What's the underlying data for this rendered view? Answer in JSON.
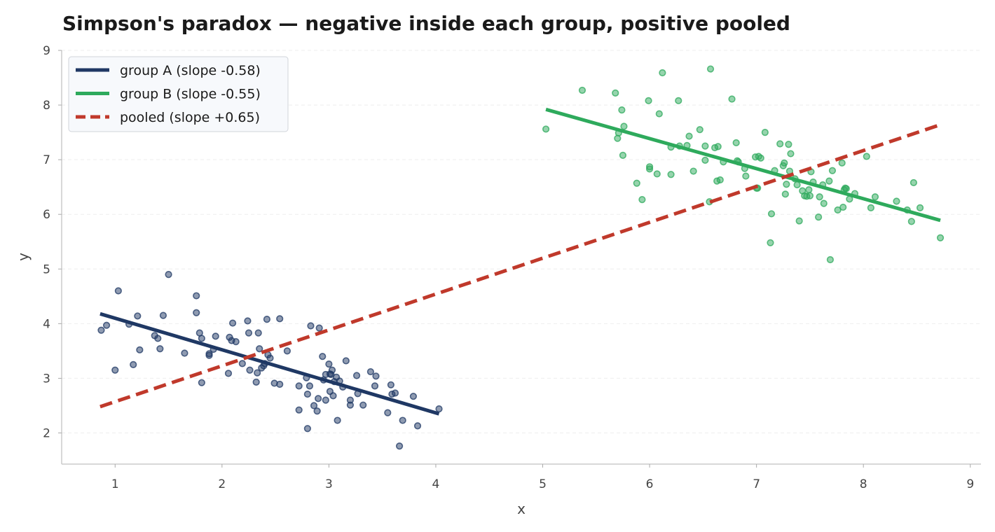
{
  "chart_data": {
    "type": "scatter",
    "title": "Simpson's paradox — negative inside each group, positive pooled",
    "xlabel": "x",
    "ylabel": "y",
    "xlim": [
      0.5,
      9.1
    ],
    "ylim": [
      1.43,
      9.0
    ],
    "xticks": [
      "1",
      "2",
      "3",
      "4",
      "5",
      "6",
      "7",
      "8",
      "9"
    ],
    "yticks": [
      "2",
      "3",
      "4",
      "5",
      "6",
      "7",
      "8",
      "9"
    ],
    "grid": "horizontal dashed",
    "legend_position": "top-left",
    "groups": [
      {
        "key": "group-a",
        "color": "#1f3864",
        "points": [
          [
            0.87,
            3.88
          ],
          [
            0.92,
            3.97
          ],
          [
            1.0,
            3.15
          ],
          [
            1.03,
            4.6
          ],
          [
            1.13,
            3.99
          ],
          [
            1.17,
            3.25
          ],
          [
            1.21,
            4.14
          ],
          [
            1.23,
            3.52
          ],
          [
            1.37,
            3.78
          ],
          [
            1.4,
            3.73
          ],
          [
            1.42,
            3.54
          ],
          [
            1.45,
            4.15
          ],
          [
            1.5,
            4.9
          ],
          [
            1.65,
            3.46
          ],
          [
            1.76,
            4.51
          ],
          [
            1.76,
            4.2
          ],
          [
            1.79,
            3.83
          ],
          [
            1.81,
            3.73
          ],
          [
            1.81,
            2.92
          ],
          [
            1.88,
            3.45
          ],
          [
            1.88,
            3.42
          ],
          [
            1.92,
            3.53
          ],
          [
            1.94,
            3.77
          ],
          [
            2.06,
            3.09
          ],
          [
            2.07,
            3.75
          ],
          [
            2.09,
            3.69
          ],
          [
            2.1,
            4.01
          ],
          [
            2.13,
            3.67
          ],
          [
            2.19,
            3.27
          ],
          [
            2.24,
            4.05
          ],
          [
            2.25,
            3.83
          ],
          [
            2.26,
            3.15
          ],
          [
            2.32,
            2.93
          ],
          [
            2.33,
            3.1
          ],
          [
            2.34,
            3.83
          ],
          [
            2.35,
            3.54
          ],
          [
            2.37,
            3.19
          ],
          [
            2.39,
            3.23
          ],
          [
            2.4,
            3.27
          ],
          [
            2.42,
            4.08
          ],
          [
            2.43,
            3.43
          ],
          [
            2.45,
            3.37
          ],
          [
            2.49,
            2.91
          ],
          [
            2.54,
            4.09
          ],
          [
            2.54,
            2.89
          ],
          [
            2.61,
            3.5
          ],
          [
            2.72,
            2.86
          ],
          [
            2.72,
            2.42
          ],
          [
            2.79,
            3.01
          ],
          [
            2.8,
            2.71
          ],
          [
            2.8,
            2.08
          ],
          [
            2.82,
            2.86
          ],
          [
            2.83,
            3.96
          ],
          [
            2.86,
            2.5
          ],
          [
            2.89,
            2.4
          ],
          [
            2.9,
            2.63
          ],
          [
            2.91,
            3.92
          ],
          [
            2.94,
            3.4
          ],
          [
            2.95,
            2.97
          ],
          [
            2.97,
            2.6
          ],
          [
            2.97,
            3.07
          ],
          [
            3.0,
            3.26
          ],
          [
            3.01,
            3.08
          ],
          [
            3.01,
            2.76
          ],
          [
            3.02,
            3.07
          ],
          [
            3.03,
            3.15
          ],
          [
            3.04,
            2.68
          ],
          [
            3.05,
            2.94
          ],
          [
            3.07,
            3.02
          ],
          [
            3.08,
            2.23
          ],
          [
            3.1,
            2.95
          ],
          [
            3.13,
            2.84
          ],
          [
            3.16,
            3.32
          ],
          [
            3.2,
            2.6
          ],
          [
            3.2,
            2.51
          ],
          [
            3.26,
            3.05
          ],
          [
            3.27,
            2.72
          ],
          [
            3.32,
            2.51
          ],
          [
            3.39,
            3.12
          ],
          [
            3.43,
            2.86
          ],
          [
            3.44,
            3.04
          ],
          [
            3.55,
            2.37
          ],
          [
            3.58,
            2.88
          ],
          [
            3.59,
            2.71
          ],
          [
            3.62,
            2.73
          ],
          [
            3.66,
            1.76
          ],
          [
            3.69,
            2.23
          ],
          [
            3.79,
            2.67
          ],
          [
            3.83,
            2.13
          ],
          [
            4.03,
            2.44
          ]
        ]
      },
      {
        "key": "group-b",
        "color": "#2eaa5c",
        "points": [
          [
            5.03,
            7.56
          ],
          [
            5.37,
            8.27
          ],
          [
            5.68,
            8.22
          ],
          [
            5.7,
            7.39
          ],
          [
            5.71,
            7.49
          ],
          [
            5.74,
            7.91
          ],
          [
            5.75,
            7.08
          ],
          [
            5.76,
            7.61
          ],
          [
            5.88,
            6.57
          ],
          [
            5.93,
            6.27
          ],
          [
            5.99,
            8.08
          ],
          [
            6.0,
            6.83
          ],
          [
            6.0,
            6.87
          ],
          [
            6.07,
            6.74
          ],
          [
            6.09,
            7.84
          ],
          [
            6.12,
            8.59
          ],
          [
            6.2,
            7.23
          ],
          [
            6.2,
            6.73
          ],
          [
            6.28,
            7.25
          ],
          [
            6.27,
            8.08
          ],
          [
            6.35,
            7.26
          ],
          [
            6.37,
            7.43
          ],
          [
            6.41,
            6.79
          ],
          [
            6.47,
            7.55
          ],
          [
            6.52,
            6.99
          ],
          [
            6.52,
            7.25
          ],
          [
            6.56,
            6.23
          ],
          [
            6.57,
            8.66
          ],
          [
            6.61,
            7.22
          ],
          [
            6.64,
            7.24
          ],
          [
            6.63,
            6.61
          ],
          [
            6.66,
            6.63
          ],
          [
            6.69,
            6.96
          ],
          [
            6.77,
            8.11
          ],
          [
            6.81,
            7.31
          ],
          [
            6.82,
            6.98
          ],
          [
            6.83,
            6.96
          ],
          [
            6.89,
            6.84
          ],
          [
            6.9,
            6.7
          ],
          [
            6.99,
            7.05
          ],
          [
            7.0,
            6.48
          ],
          [
            7.01,
            6.48
          ],
          [
            7.02,
            7.06
          ],
          [
            7.04,
            7.03
          ],
          [
            7.08,
            7.5
          ],
          [
            7.13,
            5.48
          ],
          [
            7.14,
            6.01
          ],
          [
            7.17,
            6.8
          ],
          [
            7.22,
            7.29
          ],
          [
            7.25,
            6.89
          ],
          [
            7.26,
            6.94
          ],
          [
            7.27,
            6.37
          ],
          [
            7.28,
            6.55
          ],
          [
            7.3,
            7.28
          ],
          [
            7.31,
            6.79
          ],
          [
            7.32,
            7.11
          ],
          [
            7.36,
            6.65
          ],
          [
            7.38,
            6.54
          ],
          [
            7.4,
            5.88
          ],
          [
            7.43,
            6.43
          ],
          [
            7.45,
            6.34
          ],
          [
            7.47,
            6.33
          ],
          [
            7.49,
            6.45
          ],
          [
            7.5,
            6.34
          ],
          [
            7.51,
            6.78
          ],
          [
            7.53,
            6.59
          ],
          [
            7.58,
            5.95
          ],
          [
            7.59,
            6.32
          ],
          [
            7.62,
            6.54
          ],
          [
            7.63,
            6.2
          ],
          [
            7.68,
            6.61
          ],
          [
            7.69,
            5.17
          ],
          [
            7.71,
            6.8
          ],
          [
            7.76,
            6.08
          ],
          [
            7.8,
            6.94
          ],
          [
            7.81,
            6.13
          ],
          [
            7.82,
            6.45
          ],
          [
            7.83,
            6.48
          ],
          [
            7.84,
            6.47
          ],
          [
            7.87,
            6.28
          ],
          [
            7.92,
            6.38
          ],
          [
            8.03,
            7.06
          ],
          [
            8.07,
            6.12
          ],
          [
            8.11,
            6.32
          ],
          [
            8.31,
            6.24
          ],
          [
            8.41,
            6.08
          ],
          [
            8.45,
            5.87
          ],
          [
            8.47,
            6.58
          ],
          [
            8.53,
            6.12
          ],
          [
            8.72,
            5.57
          ]
        ]
      }
    ],
    "fit_lines": [
      {
        "key": "group-a",
        "color": "#1f3864",
        "dashed": false,
        "x": [
          0.86,
          4.03
        ],
        "y": [
          4.18,
          2.35
        ]
      },
      {
        "key": "group-b",
        "color": "#2eaa5c",
        "dashed": false,
        "x": [
          5.03,
          8.72
        ],
        "y": [
          7.92,
          5.89
        ]
      },
      {
        "key": "pooled",
        "color": "#c0392b",
        "dashed": true,
        "x": [
          0.86,
          8.72
        ],
        "y": [
          2.48,
          7.64
        ]
      }
    ],
    "legend": [
      {
        "key": "group-a",
        "label": "group A (slope -0.58)",
        "color": "#1f3864",
        "dashed": false
      },
      {
        "key": "group-b",
        "label": "group B (slope -0.55)",
        "color": "#2eaa5c",
        "dashed": false
      },
      {
        "key": "pooled",
        "label": "pooled (slope +0.65)",
        "color": "#c0392b",
        "dashed": true
      }
    ]
  }
}
